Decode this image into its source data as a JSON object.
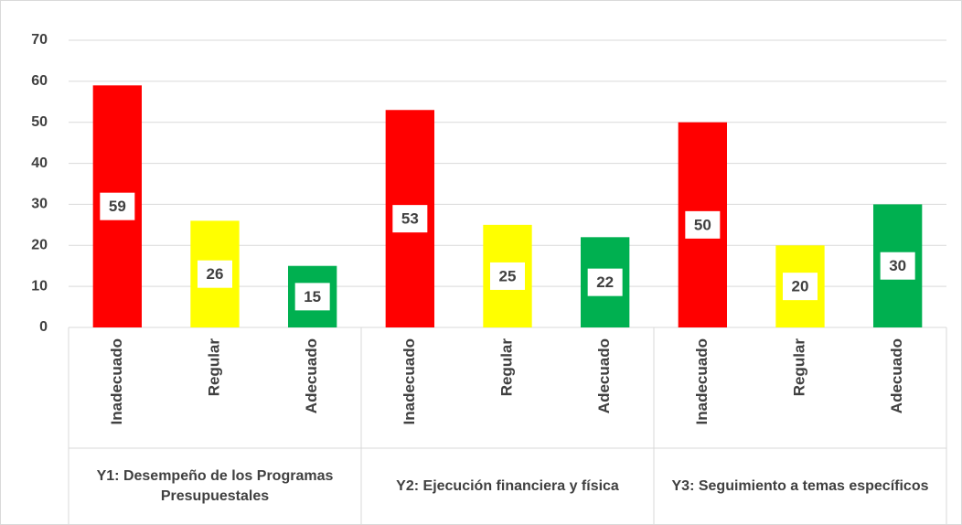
{
  "chart_data": {
    "type": "bar",
    "groups": [
      {
        "name": "Y1: Desempeño de los Programas Presupuestales",
        "categories": [
          "Inadecuado",
          "Regular",
          "Adecuado"
        ],
        "values": [
          59,
          26,
          15
        ]
      },
      {
        "name": "Y2: Ejecución financiera y física",
        "categories": [
          "Inadecuado",
          "Regular",
          "Adecuado"
        ],
        "values": [
          53,
          25,
          22
        ]
      },
      {
        "name": "Y3: Seguimiento a temas específicos",
        "categories": [
          "Inadecuado",
          "Regular",
          "Adecuado"
        ],
        "values": [
          50,
          20,
          30
        ]
      }
    ],
    "colors": [
      "#ff0000",
      "#ffff00",
      "#00b050"
    ],
    "ylim": [
      0,
      70
    ],
    "yticks": [
      0,
      10,
      20,
      30,
      40,
      50,
      60,
      70
    ],
    "grid": true
  }
}
